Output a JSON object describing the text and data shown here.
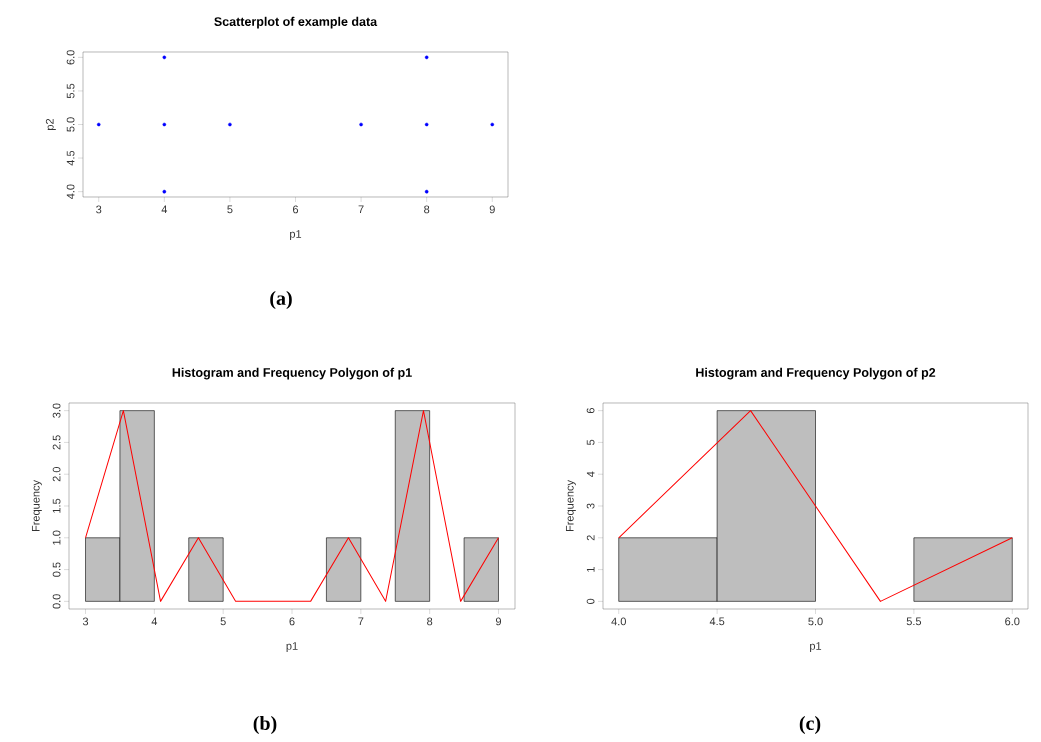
{
  "chart_data": [
    {
      "type": "scatter",
      "title": "Scatterplot of example data",
      "xlabel": "p1",
      "ylabel": "p2",
      "annotations": [
        "(a)"
      ],
      "x": [
        3,
        4,
        4,
        4,
        5,
        7,
        8,
        8,
        8,
        9
      ],
      "values": [
        5,
        6,
        5,
        4,
        5,
        5,
        6,
        5,
        4,
        5
      ],
      "color": "#0000ff",
      "marker": "circle",
      "xlim": [
        2.76,
        9.24
      ],
      "ylim": [
        3.92,
        6.08
      ],
      "xticks": [
        3,
        4,
        5,
        6,
        7,
        8,
        9
      ],
      "yticks": [
        {
          "value": 4,
          "label": "4.0"
        },
        {
          "value": 4.5,
          "label": "4.5"
        },
        {
          "value": 5,
          "label": "5.0"
        },
        {
          "value": 5.5,
          "label": "5.5"
        },
        {
          "value": 6,
          "label": "6.0"
        }
      ]
    },
    {
      "type": "histogram",
      "title": "Histogram and Frequency Polygon of p1",
      "xlabel": "p1",
      "ylabel": "Frequency",
      "annotations": [
        "(b)"
      ],
      "series": [
        {
          "type": "histogram",
          "color": "#bebebe",
          "bins": [
            3,
            3.5,
            4,
            4.5,
            5,
            5.5,
            6,
            6.5,
            7,
            7.5,
            8,
            8.5,
            9
          ],
          "values": [
            1,
            3,
            0,
            1,
            0,
            0,
            0,
            1,
            0,
            3,
            0,
            1
          ]
        },
        {
          "type": "line",
          "color": "#ff0000",
          "x": [
            3,
            3.55,
            4.09,
            4.64,
            5.18,
            5.73,
            6.27,
            6.82,
            7.36,
            7.91,
            8.45,
            9
          ],
          "values": [
            1,
            3,
            0,
            1,
            0,
            0,
            0,
            1,
            0,
            3,
            0,
            1
          ]
        }
      ],
      "xlim": [
        2.76,
        9.24
      ],
      "ylim": [
        -0.12,
        3.12
      ],
      "xticks": [
        3,
        4,
        5,
        6,
        7,
        8,
        9
      ],
      "yticks": [
        {
          "value": 0,
          "label": "0.0"
        },
        {
          "value": 0.5,
          "label": "0.5"
        },
        {
          "value": 1,
          "label": "1.0"
        },
        {
          "value": 1.5,
          "label": "1.5"
        },
        {
          "value": 2,
          "label": "2.0"
        },
        {
          "value": 2.5,
          "label": "2.5"
        },
        {
          "value": 3,
          "label": "3.0"
        }
      ]
    },
    {
      "type": "histogram",
      "title": "Histogram and Frequency Polygon of p2",
      "xlabel": "p1",
      "ylabel": "Frequency",
      "annotations": [
        "(c)"
      ],
      "series": [
        {
          "type": "histogram",
          "color": "#bebebe",
          "bins": [
            4,
            4.5,
            5,
            5.5,
            6
          ],
          "values": [
            2,
            6,
            0,
            2
          ]
        },
        {
          "type": "line",
          "color": "#ff0000",
          "x": [
            4,
            4.67,
            5.33,
            6
          ],
          "values": [
            2,
            6,
            0,
            2
          ]
        }
      ],
      "xlim": [
        3.92,
        6.08
      ],
      "ylim": [
        -0.24,
        6.24
      ],
      "xticks": [
        {
          "value": 4,
          "label": "4.0"
        },
        {
          "value": 4.5,
          "label": "4.5"
        },
        {
          "value": 5,
          "label": "5.0"
        },
        {
          "value": 5.5,
          "label": "5.5"
        },
        {
          "value": 6,
          "label": "6.0"
        }
      ],
      "yticks": [
        0,
        1,
        2,
        3,
        4,
        5,
        6
      ]
    }
  ]
}
